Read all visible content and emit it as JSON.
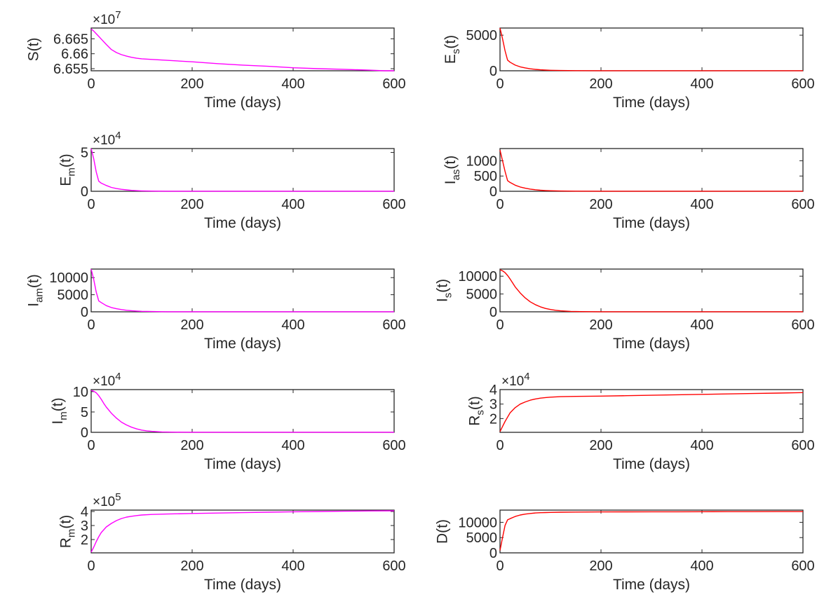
{
  "figure": {
    "xlabel": "Time (days)"
  },
  "chart_data": [
    {
      "type": "line",
      "id": "S",
      "ylabel_main": "S",
      "ylabel_sub": "",
      "ylabel_tail": "(t)",
      "exponent_base": "×10",
      "exponent_power": "7",
      "xlim": [
        0,
        600
      ],
      "ylim": [
        6.6543,
        6.6686
      ],
      "xticks": [
        0,
        200,
        400,
        600
      ],
      "xticklabels": [
        "0",
        "200",
        "400",
        "600"
      ],
      "yticks": [
        6.655,
        6.66,
        6.665
      ],
      "yticklabels": [
        "6.655",
        "6.66",
        "6.665"
      ],
      "color": "#ff00ff",
      "series": [
        {
          "x": [
            0,
            5,
            10,
            15,
            20,
            30,
            40,
            50,
            60,
            70,
            80,
            90,
            100,
            120,
            150,
            200,
            250,
            300,
            350,
            400,
            450,
            500,
            550,
            580,
            600
          ],
          "y": [
            6.6683,
            6.6676,
            6.6667,
            6.6658,
            6.6649,
            6.6631,
            6.6614,
            6.6604,
            6.6597,
            6.6592,
            6.6588,
            6.6585,
            6.6583,
            6.6581,
            6.6578,
            6.6573,
            6.6567,
            6.6562,
            6.6558,
            6.6553,
            6.655,
            6.6548,
            6.6545,
            6.6543,
            6.6543
          ]
        }
      ]
    },
    {
      "type": "line",
      "id": "Es",
      "ylabel_main": "E",
      "ylabel_sub": "s",
      "ylabel_tail": "(t)",
      "exponent_base": "",
      "exponent_power": "",
      "xlim": [
        0,
        600
      ],
      "ylim": [
        0,
        6000
      ],
      "xticks": [
        0,
        200,
        400,
        600
      ],
      "xticklabels": [
        "0",
        "200",
        "400",
        "600"
      ],
      "yticks": [
        0,
        5000
      ],
      "yticklabels": [
        "0",
        "5000"
      ],
      "color": "#ff0000",
      "series": [
        {
          "x": [
            0,
            5,
            10,
            15,
            20,
            30,
            40,
            50,
            60,
            70,
            80,
            90,
            100,
            120,
            150,
            200,
            250,
            300,
            350,
            400,
            450,
            500,
            550,
            600
          ],
          "y": [
            6000,
            4500,
            2800,
            1500,
            1200,
            800,
            550,
            400,
            280,
            200,
            140,
            100,
            70,
            35,
            15,
            10,
            10,
            10,
            10,
            10,
            10,
            10,
            10,
            10
          ]
        }
      ]
    },
    {
      "type": "line",
      "id": "Em",
      "ylabel_main": "E",
      "ylabel_sub": "m",
      "ylabel_tail": "(t)",
      "exponent_base": "×10",
      "exponent_power": "4",
      "xlim": [
        0,
        600
      ],
      "ylim": [
        0,
        5.5
      ],
      "xticks": [
        0,
        200,
        400,
        600
      ],
      "xticklabels": [
        "0",
        "200",
        "400",
        "600"
      ],
      "yticks": [
        0,
        5
      ],
      "yticklabels": [
        "0",
        "5"
      ],
      "color": "#ff00ff",
      "series": [
        {
          "x": [
            0,
            5,
            10,
            15,
            20,
            30,
            40,
            50,
            60,
            70,
            80,
            90,
            100,
            120,
            150,
            200,
            250,
            300,
            350,
            400,
            450,
            500,
            550,
            600
          ],
          "y": [
            5.5,
            4.2,
            2.5,
            1.3,
            1.05,
            0.75,
            0.5,
            0.35,
            0.25,
            0.18,
            0.12,
            0.08,
            0.05,
            0.03,
            0.01,
            0.01,
            0.01,
            0.01,
            0.01,
            0.01,
            0.01,
            0.01,
            0.01,
            0.01
          ]
        }
      ]
    },
    {
      "type": "line",
      "id": "Ias",
      "ylabel_main": "I",
      "ylabel_sub": "as",
      "ylabel_tail": "(t)",
      "exponent_base": "",
      "exponent_power": "",
      "xlim": [
        0,
        600
      ],
      "ylim": [
        0,
        1400
      ],
      "xticks": [
        0,
        200,
        400,
        600
      ],
      "xticklabels": [
        "0",
        "200",
        "400",
        "600"
      ],
      "yticks": [
        0,
        500,
        1000
      ],
      "yticklabels": [
        "0",
        "500",
        "1000"
      ],
      "color": "#ff0000",
      "series": [
        {
          "x": [
            0,
            5,
            10,
            15,
            20,
            30,
            40,
            50,
            60,
            70,
            80,
            90,
            100,
            120,
            150,
            200,
            250,
            300,
            350,
            400,
            450,
            500,
            550,
            600
          ],
          "y": [
            1350,
            1000,
            650,
            350,
            290,
            200,
            140,
            100,
            70,
            50,
            35,
            25,
            18,
            10,
            5,
            3,
            3,
            3,
            3,
            3,
            3,
            3,
            3,
            3
          ]
        }
      ]
    },
    {
      "type": "line",
      "id": "Iam",
      "ylabel_main": "I",
      "ylabel_sub": "am",
      "ylabel_tail": "(t)",
      "exponent_base": "",
      "exponent_power": "",
      "xlim": [
        0,
        600
      ],
      "ylim": [
        0,
        12500
      ],
      "xticks": [
        0,
        200,
        400,
        600
      ],
      "xticklabels": [
        "0",
        "200",
        "400",
        "600"
      ],
      "yticks": [
        0,
        5000,
        10000
      ],
      "yticklabels": [
        "0",
        "5000",
        "10000"
      ],
      "color": "#ff00ff",
      "series": [
        {
          "x": [
            0,
            5,
            10,
            15,
            20,
            30,
            40,
            50,
            60,
            70,
            80,
            90,
            100,
            120,
            150,
            200,
            250,
            300,
            350,
            400,
            450,
            500,
            550,
            600
          ],
          "y": [
            12500,
            9500,
            5800,
            3200,
            2700,
            1800,
            1250,
            900,
            650,
            450,
            320,
            220,
            150,
            80,
            30,
            15,
            15,
            15,
            15,
            15,
            15,
            15,
            15,
            15
          ]
        }
      ]
    },
    {
      "type": "line",
      "id": "Is",
      "ylabel_main": "I",
      "ylabel_sub": "s",
      "ylabel_tail": "(t)",
      "exponent_base": "",
      "exponent_power": "",
      "xlim": [
        0,
        600
      ],
      "ylim": [
        0,
        12000
      ],
      "xticks": [
        0,
        200,
        400,
        600
      ],
      "xticklabels": [
        "0",
        "200",
        "400",
        "600"
      ],
      "yticks": [
        0,
        5000,
        10000
      ],
      "yticklabels": [
        "0",
        "5000",
        "10000"
      ],
      "color": "#ff0000",
      "series": [
        {
          "x": [
            0,
            5,
            10,
            15,
            20,
            25,
            30,
            40,
            50,
            60,
            70,
            80,
            90,
            100,
            110,
            120,
            140,
            160,
            180,
            200,
            250,
            300,
            350,
            400,
            450,
            500,
            550,
            600
          ],
          "y": [
            11800,
            11500,
            11000,
            10200,
            9200,
            8100,
            7000,
            5300,
            3900,
            2800,
            2000,
            1400,
            950,
            650,
            430,
            280,
            110,
            50,
            30,
            25,
            20,
            20,
            20,
            20,
            20,
            20,
            20,
            20
          ]
        }
      ]
    },
    {
      "type": "line",
      "id": "Im",
      "ylabel_main": "I",
      "ylabel_sub": "m",
      "ylabel_tail": "(t)",
      "exponent_base": "×10",
      "exponent_power": "4",
      "xlim": [
        0,
        600
      ],
      "ylim": [
        0,
        10.5
      ],
      "xticks": [
        0,
        200,
        400,
        600
      ],
      "xticklabels": [
        "0",
        "200",
        "400",
        "600"
      ],
      "yticks": [
        0,
        5,
        10
      ],
      "yticklabels": [
        "0",
        "5",
        "10"
      ],
      "color": "#ff00ff",
      "series": [
        {
          "x": [
            0,
            5,
            10,
            15,
            20,
            25,
            30,
            40,
            50,
            60,
            70,
            80,
            90,
            100,
            110,
            120,
            140,
            160,
            180,
            200,
            250,
            300,
            350,
            400,
            450,
            500,
            550,
            600
          ],
          "y": [
            10.3,
            10.1,
            9.7,
            9.0,
            8.1,
            7.1,
            6.2,
            4.7,
            3.5,
            2.5,
            1.8,
            1.25,
            0.85,
            0.55,
            0.36,
            0.24,
            0.1,
            0.05,
            0.03,
            0.02,
            0.02,
            0.02,
            0.02,
            0.02,
            0.02,
            0.02,
            0.02,
            0.02
          ]
        }
      ]
    },
    {
      "type": "line",
      "id": "Rs",
      "ylabel_main": "R",
      "ylabel_sub": "s",
      "ylabel_tail": "(t)",
      "exponent_base": "×10",
      "exponent_power": "4",
      "xlim": [
        0,
        600
      ],
      "ylim": [
        1.05,
        4.0
      ],
      "xticks": [
        0,
        200,
        400,
        600
      ],
      "xticklabels": [
        "0",
        "200",
        "400",
        "600"
      ],
      "yticks": [
        2,
        3,
        4
      ],
      "yticklabels": [
        "2",
        "3",
        "4"
      ],
      "color": "#ff0000",
      "series": [
        {
          "x": [
            0,
            5,
            10,
            15,
            20,
            30,
            40,
            50,
            60,
            70,
            80,
            90,
            100,
            120,
            150,
            200,
            250,
            300,
            350,
            400,
            450,
            500,
            550,
            600
          ],
          "y": [
            1.1,
            1.45,
            1.8,
            2.1,
            2.4,
            2.75,
            3.0,
            3.15,
            3.27,
            3.35,
            3.41,
            3.45,
            3.48,
            3.51,
            3.53,
            3.55,
            3.58,
            3.61,
            3.64,
            3.67,
            3.7,
            3.73,
            3.76,
            3.79
          ]
        }
      ]
    },
    {
      "type": "line",
      "id": "Rm",
      "ylabel_main": "R",
      "ylabel_sub": "m",
      "ylabel_tail": "(t)",
      "exponent_base": "×10",
      "exponent_power": "5",
      "xlim": [
        0,
        600
      ],
      "ylim": [
        1.05,
        4.1
      ],
      "xticks": [
        0,
        200,
        400,
        600
      ],
      "xticklabels": [
        "0",
        "200",
        "400",
        "600"
      ],
      "yticks": [
        2,
        3,
        4
      ],
      "yticklabels": [
        "2",
        "3",
        "4"
      ],
      "color": "#ff00ff",
      "series": [
        {
          "x": [
            0,
            5,
            10,
            15,
            20,
            30,
            40,
            50,
            60,
            70,
            80,
            90,
            100,
            120,
            150,
            200,
            250,
            300,
            350,
            400,
            450,
            500,
            550,
            600
          ],
          "y": [
            1.1,
            1.45,
            1.85,
            2.2,
            2.5,
            2.9,
            3.15,
            3.35,
            3.5,
            3.6,
            3.66,
            3.71,
            3.75,
            3.79,
            3.82,
            3.86,
            3.89,
            3.92,
            3.95,
            3.98,
            4.0,
            4.02,
            4.04,
            4.05
          ]
        }
      ]
    },
    {
      "type": "line",
      "id": "D",
      "ylabel_main": "D",
      "ylabel_sub": "",
      "ylabel_tail": "(t)",
      "exponent_base": "",
      "exponent_power": "",
      "xlim": [
        0,
        600
      ],
      "ylim": [
        0,
        14000
      ],
      "xticks": [
        0,
        200,
        400,
        600
      ],
      "xticklabels": [
        "0",
        "200",
        "400",
        "600"
      ],
      "yticks": [
        0,
        5000,
        10000
      ],
      "yticklabels": [
        "0",
        "5000",
        "10000"
      ],
      "color": "#ff0000",
      "series": [
        {
          "x": [
            0,
            5,
            10,
            15,
            20,
            30,
            40,
            50,
            60,
            70,
            80,
            90,
            100,
            120,
            150,
            200,
            250,
            300,
            350,
            400,
            450,
            500,
            550,
            600
          ],
          "y": [
            800,
            5000,
            9000,
            10800,
            11200,
            11900,
            12400,
            12700,
            12900,
            13050,
            13150,
            13200,
            13250,
            13300,
            13350,
            13400,
            13420,
            13440,
            13460,
            13480,
            13490,
            13500,
            13510,
            13520
          ]
        }
      ]
    }
  ]
}
